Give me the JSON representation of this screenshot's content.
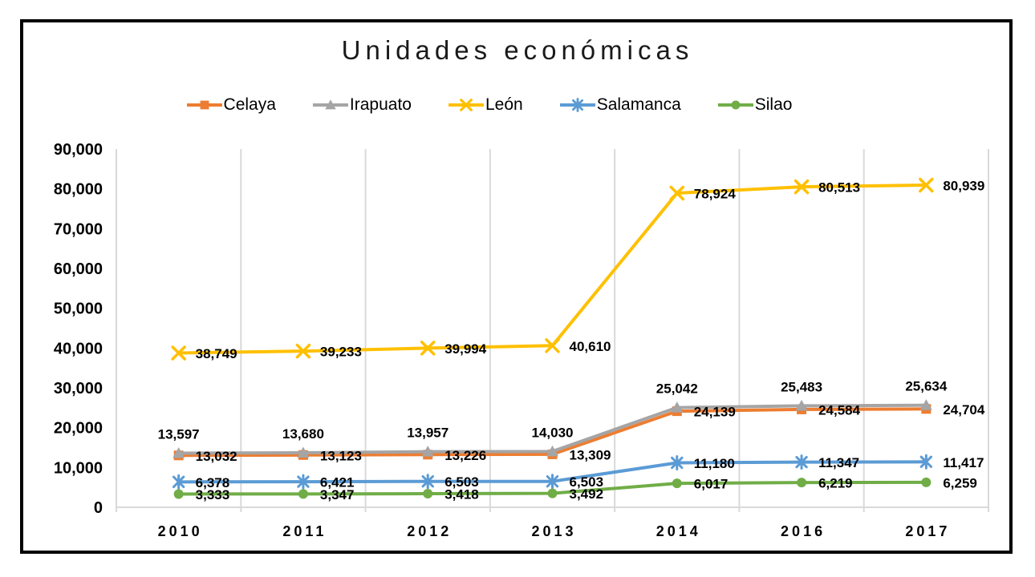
{
  "title": "Unidades económicas",
  "chart_data": {
    "type": "line",
    "title": "Unidades económicas",
    "categories": [
      "2010",
      "2011",
      "2012",
      "2013",
      "2014",
      "2016",
      "2017"
    ],
    "series": [
      {
        "name": "Celaya",
        "color": "#ED7D31",
        "marker": "square",
        "label_placement": "right",
        "values": [
          13032,
          13123,
          13226,
          13309,
          24139,
          24584,
          24704
        ]
      },
      {
        "name": "Irapuato",
        "color": "#A5A5A5",
        "marker": "triangle",
        "label_placement": "above",
        "values": [
          13597,
          13680,
          13957,
          14030,
          25042,
          25483,
          25634
        ]
      },
      {
        "name": "León",
        "color": "#FFC000",
        "marker": "x",
        "label_placement": "right",
        "values": [
          38749,
          39233,
          39994,
          40610,
          78924,
          80513,
          80939
        ]
      },
      {
        "name": "Salamanca",
        "color": "#5B9BD5",
        "marker": "asterisk",
        "label_placement": "right",
        "values": [
          6378,
          6421,
          6503,
          6503,
          11180,
          11347,
          11417
        ]
      },
      {
        "name": "Silao",
        "color": "#70AD47",
        "marker": "circle",
        "label_placement": "right",
        "values": [
          3333,
          3347,
          3418,
          3492,
          6017,
          6219,
          6259
        ]
      }
    ],
    "ylim": [
      0,
      90000
    ],
    "y_tick_step": 10000,
    "y_tick_labels": [
      "0",
      "10,000",
      "20,000",
      "30,000",
      "40,000",
      "50,000",
      "60,000",
      "70,000",
      "80,000",
      "90,000"
    ],
    "xlabel": "",
    "ylabel": "",
    "grid": "vertical-only",
    "legend_position": "top",
    "colors": {
      "gridline": "#D9D9D9",
      "axis_line": "#D9D9D9",
      "axis_text": "#000000",
      "data_label_text": "#000000",
      "title_text": "#1a1a1a",
      "chart_border": "#000000"
    }
  }
}
